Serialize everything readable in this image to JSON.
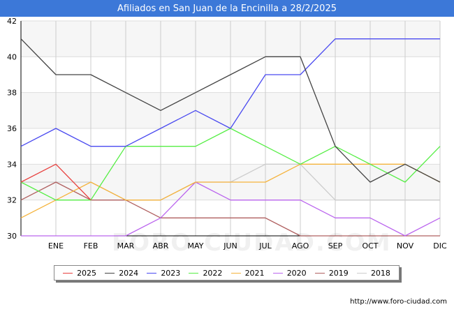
{
  "chart_data": {
    "type": "line",
    "title": "Afiliados en San Juan de la Encinilla a 28/2/2025",
    "categories": [
      "",
      "ENE",
      "FEB",
      "MAR",
      "ABR",
      "MAY",
      "JUN",
      "JUL",
      "AGO",
      "SEP",
      "OCT",
      "NOV",
      "DIC"
    ],
    "ylim": [
      30,
      42
    ],
    "yticks": [
      30,
      32,
      34,
      36,
      38,
      40,
      42
    ],
    "series": [
      {
        "name": "2025",
        "color": "#e8413f",
        "values": [
          33,
          34,
          32,
          null,
          null,
          null,
          null,
          null,
          null,
          null,
          null,
          null,
          null
        ]
      },
      {
        "name": "2024",
        "color": "#444444",
        "values": [
          41,
          39,
          39,
          38,
          37,
          38,
          39,
          40,
          40,
          35,
          33,
          34,
          33
        ]
      },
      {
        "name": "2023",
        "color": "#4a4af0",
        "values": [
          35,
          36,
          35,
          35,
          36,
          37,
          36,
          39,
          39,
          41,
          41,
          41,
          41
        ]
      },
      {
        "name": "2022",
        "color": "#55ee44",
        "values": [
          33,
          32,
          32,
          35,
          35,
          35,
          36,
          35,
          34,
          35,
          34,
          33,
          35
        ]
      },
      {
        "name": "2021",
        "color": "#f5b33c",
        "values": [
          31,
          32,
          33,
          32,
          32,
          33,
          33,
          33,
          34,
          34,
          34,
          34,
          33
        ]
      },
      {
        "name": "2020",
        "color": "#bb66ee",
        "values": [
          30,
          30,
          30,
          30,
          31,
          33,
          32,
          32,
          32,
          31,
          31,
          30,
          31
        ]
      },
      {
        "name": "2019",
        "color": "#b06060",
        "values": [
          32,
          33,
          32,
          32,
          31,
          31,
          31,
          31,
          30,
          30,
          30,
          30,
          30
        ]
      },
      {
        "name": "2018",
        "color": "#cccccc",
        "values": [
          33,
          33,
          33,
          32,
          32,
          33,
          33,
          34,
          34,
          32,
          32,
          32,
          32
        ]
      }
    ]
  },
  "footer": {
    "url": "http://www.foro-ciudad.com"
  },
  "watermark": {
    "text": "FORO-CIUDAD.COM"
  }
}
